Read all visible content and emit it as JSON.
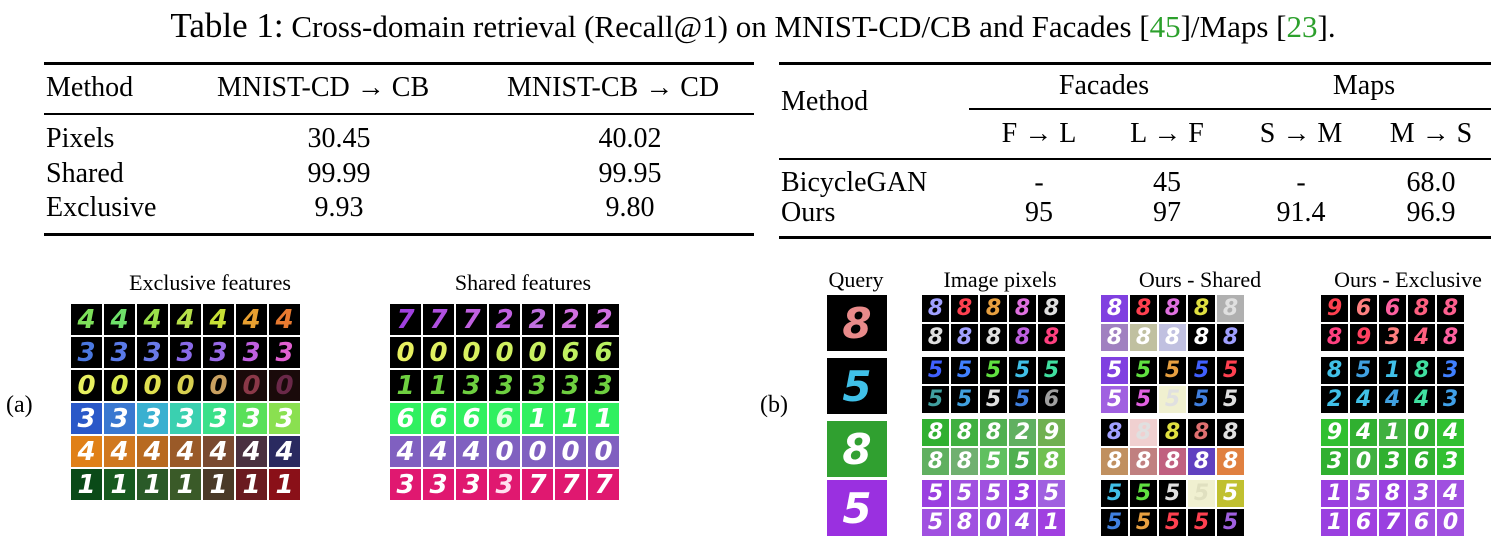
{
  "caption": {
    "label": "Table 1:",
    "text": "Cross-domain retrieval (Recall@1) on MNIST-CD/CB and Facades [",
    "cite1": "45",
    "mid": "]/Maps [",
    "cite2": "23",
    "end": "]."
  },
  "table_left": {
    "headers": [
      "Method",
      "MNIST-CD → CB",
      "MNIST-CB → CD"
    ],
    "rows": [
      {
        "method": "Pixels",
        "v1": "30.45",
        "v2": "40.02"
      },
      {
        "method": "Shared",
        "v1": "99.99",
        "v2": "99.95"
      },
      {
        "method": "Exclusive",
        "v1": "9.93",
        "v2": "9.80"
      }
    ]
  },
  "table_right": {
    "method_header": "Method",
    "group1": "Facades",
    "group2": "Maps",
    "subheaders": [
      "F → L",
      "L → F",
      "S → M",
      "M → S"
    ],
    "rows": [
      {
        "method": "BicycleGAN",
        "vals": [
          "-",
          "45",
          "-",
          "68.0"
        ]
      },
      {
        "method": "Ours",
        "vals": [
          "95",
          "97",
          "91.4",
          "96.9"
        ]
      }
    ]
  },
  "panel_a": {
    "label": "(a)",
    "exclusive_title": "Exclusive features",
    "shared_title": "Shared features",
    "exclusive_rows": [
      {
        "bg": "#000000",
        "digits": "4444444",
        "colors": [
          "#7ee05a",
          "#6ee06a",
          "#9be04a",
          "#b7e04a",
          "#c8e035",
          "#e8a030",
          "#e87a30"
        ]
      },
      {
        "bg": "#000000",
        "digits": "3333333",
        "colors": [
          "#4a78e0",
          "#5a7ae8",
          "#6a7ae8",
          "#8a6ae8",
          "#9a6ae8",
          "#c060e0",
          "#e060d0"
        ]
      },
      {
        "bg": "#000000",
        "digits": "0000000",
        "colors": [
          "#e8f060",
          "#dcec50",
          "#e0e050",
          "#d8d050",
          "#c8a060",
          "#8a3848",
          "#6a2848"
        ],
        "bgs": [
          "#000",
          "#000",
          "#000",
          "#000",
          "#000",
          "#1a0a0a",
          "#1a0a0a"
        ]
      },
      {
        "bg": "#2a5ab0",
        "digits": "3333333",
        "colors": [
          "#ffffff",
          "#ffffff",
          "#ffffff",
          "#ffffff",
          "#ffffff",
          "#ffffff",
          "#ffffff"
        ],
        "bgs": [
          "#2a58c8",
          "#3a78d0",
          "#3ab0d0",
          "#3ad0b0",
          "#3ae08a",
          "#5ae05a",
          "#8ae050"
        ]
      },
      {
        "bg": "#c87018",
        "digits": "4444444",
        "colors": [
          "#ffffff",
          "#ffffff",
          "#ffffff",
          "#ffffff",
          "#ffffff",
          "#ffffff",
          "#ffffff"
        ],
        "bgs": [
          "#e08018",
          "#d07820",
          "#b86a20",
          "#9a5a28",
          "#7a4a30",
          "#4a3040",
          "#2a2a60"
        ]
      },
      {
        "bg": "#1a5a20",
        "digits": "1111111",
        "colors": [
          "#ffffff",
          "#ffffff",
          "#ffffff",
          "#ffffff",
          "#ffffff",
          "#ffffff",
          "#ffffff"
        ],
        "bgs": [
          "#0a4a18",
          "#185a20",
          "#2a5a28",
          "#3a5a28",
          "#4a3a28",
          "#6a1a20",
          "#8a1018"
        ]
      }
    ],
    "shared_rows": [
      {
        "digits": "7772222",
        "colors": [
          "#a040e0",
          "#b050e0",
          "#c060e0",
          "#c060e0",
          "#c070e0",
          "#d070e0",
          "#d070e0"
        ],
        "bgs": [
          "#000",
          "#000",
          "#000",
          "#000",
          "#000",
          "#000",
          "#000"
        ]
      },
      {
        "digits": "0000066",
        "colors": [
          "#e8f060",
          "#e0f060",
          "#d8f060",
          "#d0f060",
          "#c8f060",
          "#c0f060",
          "#b8f060"
        ],
        "bgs": [
          "#000",
          "#000",
          "#000",
          "#000",
          "#000",
          "#000",
          "#000"
        ]
      },
      {
        "digits": "1133333",
        "colors": [
          "#6ed040",
          "#6ed040",
          "#6ed040",
          "#6ed040",
          "#6ed040",
          "#6ed040",
          "#6ed040"
        ],
        "bgs": [
          "#000",
          "#000",
          "#000",
          "#000",
          "#000",
          "#000",
          "#000"
        ]
      },
      {
        "digits": "6666111",
        "colors": [
          "#ffffff",
          "#ffffff",
          "#ffffff",
          "#e0ffe0",
          "#ffffff",
          "#ffffff",
          "#ffffff"
        ],
        "bgs": [
          "#30f060",
          "#30f060",
          "#30f060",
          "#30f060",
          "#30f060",
          "#30f060",
          "#30f060"
        ]
      },
      {
        "digits": "4440000",
        "colors": [
          "#ffffff",
          "#ffffff",
          "#ffffff",
          "#ffffff",
          "#ffffff",
          "#ffffff",
          "#ffffff"
        ],
        "bgs": [
          "#8060c0",
          "#8060c0",
          "#8060c0",
          "#8060c0",
          "#8060c0",
          "#8060c0",
          "#8060c0"
        ]
      },
      {
        "digits": "3333777",
        "colors": [
          "#ffffff",
          "#ffffff",
          "#ffffff",
          "#ffe0f0",
          "#ffffff",
          "#ffffff",
          "#ffffff"
        ],
        "bgs": [
          "#e01870",
          "#e01870",
          "#e01870",
          "#e01870",
          "#e01870",
          "#e01870",
          "#e01870"
        ]
      }
    ]
  },
  "panel_b": {
    "label": "(b)",
    "query_title": "Query",
    "pixels_title": "Image pixels",
    "shared_title": "Ours - Shared",
    "exclusive_title": "Ours - Exclusive",
    "queries": [
      {
        "digit": "8",
        "color": "#e88a8a",
        "bg": "#000000"
      },
      {
        "digit": "5",
        "color": "#40c0e8",
        "bg": "#000000"
      },
      {
        "digit": "8",
        "color": "#ffffff",
        "bg": "#30a030"
      },
      {
        "digit": "5",
        "color": "#ffffff",
        "bg": "#9a30e0"
      }
    ],
    "pixels_groups": [
      {
        "digits": "8888888888",
        "colors": [
          "#a0a0ff",
          "#ff4050",
          "#e8a040",
          "#e070e0",
          "#e0e0e0",
          "#e0e0e0",
          "#a0a0ff",
          "#e0e0e0",
          "#c060e0",
          "#ff4080"
        ],
        "bgs": [
          "#000",
          "#000",
          "#000",
          "#000",
          "#000",
          "#000",
          "#000",
          "#000",
          "#000",
          "#000"
        ]
      },
      {
        "digits": "5555555556",
        "colors": [
          "#4060ff",
          "#4080ff",
          "#60e040",
          "#40c0e8",
          "#40e0a0",
          "#40a0a0",
          "#40a0e0",
          "#e0e0e0",
          "#4080e0",
          "#a0a0a0"
        ],
        "bgs": [
          "#000",
          "#000",
          "#000",
          "#000",
          "#000",
          "#000",
          "#000",
          "#000",
          "#000",
          "#000"
        ]
      },
      {
        "digits": "8882988558",
        "colors": [
          "#fff",
          "#fff",
          "#fff",
          "#fff",
          "#fff",
          "#fff",
          "#fff",
          "#fff",
          "#fff",
          "#fff"
        ],
        "bgs": [
          "#30b030",
          "#40b040",
          "#50b050",
          "#60b060",
          "#70b050",
          "#60b060",
          "#70b070",
          "#60c060",
          "#50b050",
          "#70c050"
        ]
      },
      {
        "digits": "5553558041",
        "colors": [
          "#fff",
          "#fff",
          "#fff",
          "#fff",
          "#fff",
          "#fff",
          "#fff",
          "#fff",
          "#fff",
          "#fff"
        ],
        "bgs": [
          "#9a40e0",
          "#a050e0",
          "#a050e0",
          "#9a40e0",
          "#a060e0",
          "#a050e0",
          "#a050e0",
          "#9a50e0",
          "#9a50e0",
          "#a040e0"
        ]
      }
    ],
    "shared_groups": [
      {
        "digits": "8888888888",
        "colors": [
          "#fff",
          "#ff4050",
          "#e070e0",
          "#e0e040",
          "#e0e0e0",
          "#fff",
          "#fff",
          "#fff",
          "#fff",
          "#a0a0ff"
        ],
        "bgs": [
          "#8040e0",
          "#000",
          "#000",
          "#000",
          "#b0b0b0",
          "#a080c0",
          "#c0c0a0",
          "#c0c0e0",
          "#000",
          "#000"
        ]
      },
      {
        "digits": "5555555555",
        "colors": [
          "#fff",
          "#60e040",
          "#e8a040",
          "#4060ff",
          "#ff4050",
          "#fff",
          "#e060e0",
          "#e0e0e0",
          "#4080e0",
          "#e0e0e0"
        ],
        "bgs": [
          "#8040e0",
          "#000",
          "#000",
          "#000",
          "#000",
          "#a060e0",
          "#000",
          "#f0f0d0",
          "#000",
          "#000"
        ]
      },
      {
        "digits": "8888888888",
        "colors": [
          "#a0a0ff",
          "#e0e0e0",
          "#e0e040",
          "#e07070",
          "#e0e0e0",
          "#fff",
          "#fff",
          "#fff",
          "#fff",
          "#fff"
        ],
        "bgs": [
          "#000",
          "#f0d0d0",
          "#000",
          "#000",
          "#000",
          "#c09060",
          "#c08080",
          "#c06080",
          "#6040c0",
          "#e08040"
        ]
      },
      {
        "digits": "5555555555",
        "colors": [
          "#40c0e8",
          "#60e040",
          "#e0e0e0",
          "#e0e0c0",
          "#fff",
          "#4080e0",
          "#e8a040",
          "#ff4050",
          "#ff4050",
          "#a060e0"
        ],
        "bgs": [
          "#000",
          "#000",
          "#000",
          "#f0f0d0",
          "#c0c030",
          "#000",
          "#000",
          "#000",
          "#000",
          "#000"
        ]
      }
    ],
    "exclusive_groups": [
      {
        "digits": "9668889348",
        "colors": [
          "#ff4050",
          "#ff8080",
          "#ff60a0",
          "#ff6080",
          "#ff6090",
          "#ff4080",
          "#ff4060",
          "#ff8080",
          "#ff6080",
          "#ff60a0"
        ],
        "bgs": [
          "#000",
          "#000",
          "#000",
          "#000",
          "#000",
          "#000",
          "#000",
          "#000",
          "#000",
          "#000"
        ]
      },
      {
        "digits": "8518324443",
        "colors": [
          "#40c0e8",
          "#40a0e0",
          "#40c0e8",
          "#40e0a0",
          "#4080ff",
          "#40c0e8",
          "#40c0e8",
          "#40a0e0",
          "#40e0a0",
          "#40a0e8"
        ],
        "bgs": [
          "#000",
          "#000",
          "#000",
          "#000",
          "#000",
          "#000",
          "#000",
          "#000",
          "#000",
          "#000"
        ]
      },
      {
        "digits": "9410430363",
        "colors": [
          "#fff",
          "#fff",
          "#fff",
          "#fff",
          "#fff",
          "#fff",
          "#fff",
          "#fff",
          "#fff",
          "#fff"
        ],
        "bgs": [
          "#30c030",
          "#30b030",
          "#40b040",
          "#30b030",
          "#30c030",
          "#30b030",
          "#40b040",
          "#30b030",
          "#30b030",
          "#30c030"
        ]
      },
      {
        "digits": "1583416760",
        "colors": [
          "#fff",
          "#fff",
          "#fff",
          "#fff",
          "#fff",
          "#fff",
          "#fff",
          "#fff",
          "#fff",
          "#fff"
        ],
        "bgs": [
          "#9a40e0",
          "#a050e0",
          "#9a40e0",
          "#a050e0",
          "#a050e0",
          "#9a40e0",
          "#a040e0",
          "#9a40e0",
          "#a050e0",
          "#a050e0"
        ]
      }
    ]
  }
}
